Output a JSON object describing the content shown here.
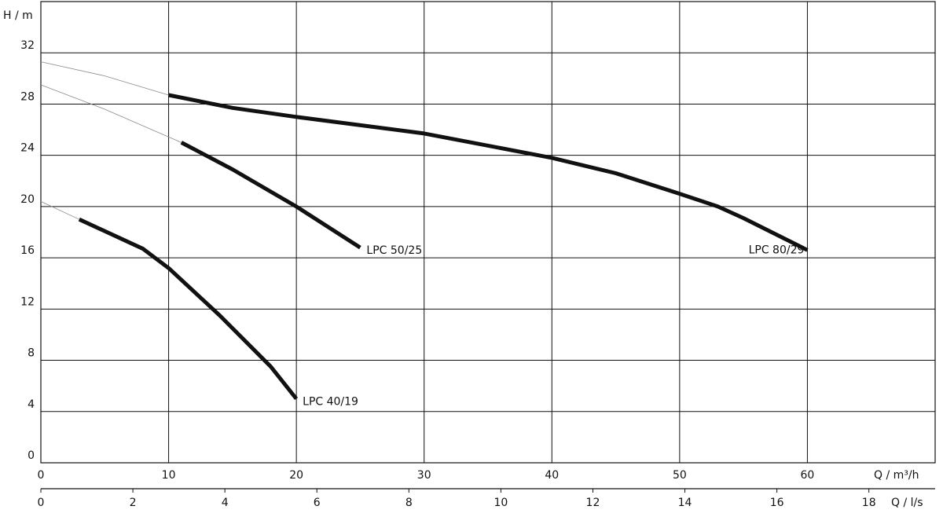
{
  "chart_data": {
    "type": "line",
    "y_label": "H / m",
    "x_label": "Q / m³/h",
    "x2_label": "Q / l/s",
    "xlim": [
      0,
      70
    ],
    "xticks": [
      0,
      10,
      20,
      30,
      40,
      50,
      60
    ],
    "x2lim": [
      0,
      19.44
    ],
    "x2ticks": [
      0,
      2,
      4,
      6,
      8,
      10,
      12,
      14,
      16,
      18
    ],
    "ylim": [
      0,
      36
    ],
    "yticks": [
      0,
      4,
      8,
      12,
      16,
      20,
      24,
      28,
      32
    ],
    "grid": true,
    "series": [
      {
        "name": "LPC 80/29",
        "color": "#111111",
        "extension_color": "#8a8a8a",
        "x": [
          10,
          15,
          20,
          30,
          40,
          45,
          50,
          53,
          55,
          60
        ],
        "values": [
          28.7,
          27.7,
          27.0,
          25.7,
          23.8,
          22.6,
          21.0,
          20.0,
          19.1,
          16.6
        ],
        "extension_x": [
          0,
          5,
          10
        ],
        "extension_values": [
          31.3,
          30.2,
          28.7
        ]
      },
      {
        "name": "LPC 50/25",
        "color": "#111111",
        "extension_color": "#8a8a8a",
        "x": [
          11,
          15,
          20,
          25
        ],
        "values": [
          25.0,
          22.9,
          20.0,
          16.8
        ],
        "extension_x": [
          0,
          5,
          11
        ],
        "extension_values": [
          29.5,
          27.6,
          25.0
        ]
      },
      {
        "name": "LPC 40/19",
        "color": "#111111",
        "extension_color": "#8a8a8a",
        "x": [
          3,
          8,
          10,
          14,
          18,
          20
        ],
        "values": [
          19.0,
          16.7,
          15.2,
          11.5,
          7.5,
          5.0
        ],
        "extension_x": [
          0,
          3
        ],
        "extension_values": [
          20.4,
          19.0
        ]
      }
    ]
  }
}
